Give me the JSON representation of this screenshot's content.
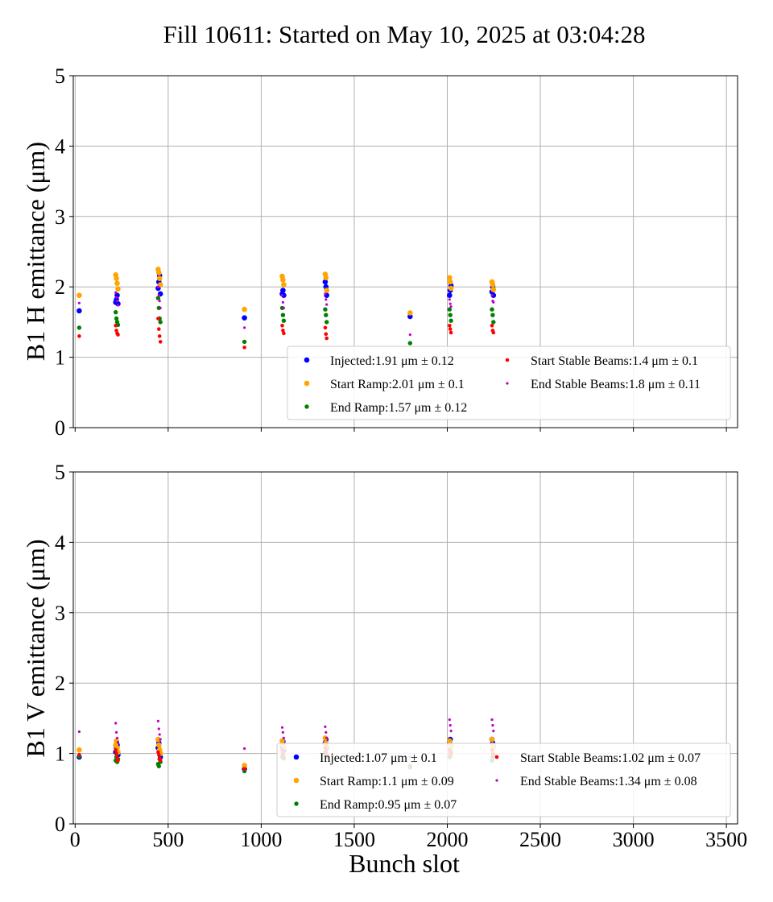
{
  "title": "Fill 10611: Started on May 10, 2025 at 03:04:28",
  "xlabel": "Bunch slot",
  "chart_data": [
    {
      "type": "scatter",
      "ylabel": "B1 H emittance (μm)",
      "xlim": [
        -10,
        3560
      ],
      "ylim": [
        0,
        5
      ],
      "xticks": [
        "0",
        "500",
        "1000",
        "1500",
        "2000",
        "2500",
        "3000",
        "3500"
      ],
      "yticks": [
        "0",
        "1",
        "2",
        "3",
        "4",
        "5"
      ],
      "grid": true,
      "legend_position": "lower-right",
      "series": [
        {
          "name": "Injected",
          "legend": "Injected:1.91 μm ± 0.12",
          "color": "#0000ff",
          "marker_size": "large",
          "points": [
            [
              22,
              1.66
            ],
            [
              218,
              1.78
            ],
            [
              222,
              1.82
            ],
            [
              226,
              1.88
            ],
            [
              230,
              1.76
            ],
            [
              446,
              1.98
            ],
            [
              450,
              2.07
            ],
            [
              454,
              2.16
            ],
            [
              458,
              1.9
            ],
            [
              910,
              1.56
            ],
            [
              1113,
              1.9
            ],
            [
              1117,
              1.95
            ],
            [
              1121,
              1.88
            ],
            [
              1344,
              2.07
            ],
            [
              1348,
              2.0
            ],
            [
              1352,
              1.88
            ],
            [
              1800,
              1.58
            ],
            [
              2012,
              1.88
            ],
            [
              2016,
              1.95
            ],
            [
              2020,
              2.02
            ],
            [
              2240,
              1.93
            ],
            [
              2244,
              2.0
            ],
            [
              2248,
              1.88
            ]
          ]
        },
        {
          "name": "Start Ramp",
          "legend": "Start Ramp:2.01 μm ± 0.1",
          "color": "#ffa500",
          "marker_size": "large",
          "points": [
            [
              22,
              1.88
            ],
            [
              218,
              2.17
            ],
            [
              222,
              2.12
            ],
            [
              226,
              2.05
            ],
            [
              230,
              1.97
            ],
            [
              446,
              2.25
            ],
            [
              450,
              2.2
            ],
            [
              454,
              2.12
            ],
            [
              458,
              2.03
            ],
            [
              910,
              1.68
            ],
            [
              1113,
              2.15
            ],
            [
              1117,
              2.1
            ],
            [
              1121,
              2.03
            ],
            [
              1344,
              2.18
            ],
            [
              1348,
              2.13
            ],
            [
              1352,
              1.95
            ],
            [
              1800,
              1.63
            ],
            [
              2012,
              2.13
            ],
            [
              2016,
              2.07
            ],
            [
              2020,
              1.98
            ],
            [
              2240,
              2.07
            ],
            [
              2244,
              2.03
            ],
            [
              2248,
              1.96
            ]
          ]
        },
        {
          "name": "End Ramp",
          "legend": "End Ramp:1.57 μm ± 0.12",
          "color": "#008000",
          "marker_size": "medium",
          "points": [
            [
              22,
              1.42
            ],
            [
              218,
              1.64
            ],
            [
              222,
              1.55
            ],
            [
              226,
              1.5
            ],
            [
              230,
              1.46
            ],
            [
              446,
              1.84
            ],
            [
              450,
              1.7
            ],
            [
              454,
              1.55
            ],
            [
              458,
              1.5
            ],
            [
              910,
              1.22
            ],
            [
              1113,
              1.7
            ],
            [
              1117,
              1.6
            ],
            [
              1121,
              1.52
            ],
            [
              1344,
              1.68
            ],
            [
              1348,
              1.6
            ],
            [
              1352,
              1.5
            ],
            [
              1800,
              1.2
            ],
            [
              2012,
              1.68
            ],
            [
              2016,
              1.6
            ],
            [
              2020,
              1.52
            ],
            [
              2240,
              1.68
            ],
            [
              2244,
              1.6
            ],
            [
              2248,
              1.5
            ]
          ]
        },
        {
          "name": "Start Stable Beams",
          "legend": "Start Stable Beams:1.4 μm ± 0.1",
          "color": "#ff0000",
          "marker_size": "small",
          "points": [
            [
              22,
              1.3
            ],
            [
              218,
              1.45
            ],
            [
              222,
              1.38
            ],
            [
              226,
              1.34
            ],
            [
              230,
              1.32
            ],
            [
              446,
              1.55
            ],
            [
              450,
              1.4
            ],
            [
              454,
              1.3
            ],
            [
              458,
              1.22
            ],
            [
              910,
              1.14
            ],
            [
              1113,
              1.45
            ],
            [
              1117,
              1.38
            ],
            [
              1121,
              1.34
            ],
            [
              1344,
              1.42
            ],
            [
              1348,
              1.33
            ],
            [
              1352,
              1.27
            ],
            [
              2012,
              1.45
            ],
            [
              2016,
              1.4
            ],
            [
              2020,
              1.35
            ],
            [
              2240,
              1.45
            ],
            [
              2244,
              1.38
            ],
            [
              2248,
              1.35
            ]
          ]
        },
        {
          "name": "End Stable Beams",
          "legend": "End Stable Beams:1.8 μm ± 0.11",
          "color": "#bf00bf",
          "marker_size": "tiny",
          "points": [
            [
              22,
              1.77
            ],
            [
              218,
              1.92
            ],
            [
              222,
              1.85
            ],
            [
              226,
              1.8
            ],
            [
              230,
              1.74
            ],
            [
              446,
              2.0
            ],
            [
              450,
              1.88
            ],
            [
              454,
              1.8
            ],
            [
              458,
              1.7
            ],
            [
              910,
              1.42
            ],
            [
              1113,
              1.88
            ],
            [
              1117,
              1.78
            ],
            [
              1121,
              1.7
            ],
            [
              1344,
              1.9
            ],
            [
              1348,
              1.82
            ],
            [
              1352,
              1.75
            ],
            [
              1800,
              1.32
            ],
            [
              2012,
              1.82
            ],
            [
              2016,
              1.76
            ],
            [
              2020,
              1.72
            ],
            [
              2240,
              1.88
            ],
            [
              2244,
              1.8
            ],
            [
              2248,
              1.78
            ]
          ]
        }
      ]
    },
    {
      "type": "scatter",
      "ylabel": "B1 V emittance (μm)",
      "xlim": [
        -10,
        3560
      ],
      "ylim": [
        0,
        5
      ],
      "xticks": [
        "0",
        "500",
        "1000",
        "1500",
        "2000",
        "2500",
        "3000",
        "3500"
      ],
      "yticks": [
        "0",
        "1",
        "2",
        "3",
        "4",
        "5"
      ],
      "grid": true,
      "legend_position": "lower-right",
      "series": [
        {
          "name": "Injected",
          "legend": "Injected:1.07 μm ± 0.1",
          "color": "#0000ff",
          "marker_size": "large",
          "points": [
            [
              22,
              0.95
            ],
            [
              218,
              1.02
            ],
            [
              222,
              1.08
            ],
            [
              226,
              1.12
            ],
            [
              230,
              0.98
            ],
            [
              446,
              1.08
            ],
            [
              450,
              1.15
            ],
            [
              454,
              1.02
            ],
            [
              458,
              0.95
            ],
            [
              910,
              0.78
            ],
            [
              1113,
              1.1
            ],
            [
              1117,
              1.17
            ],
            [
              1121,
              1.05
            ],
            [
              1344,
              1.15
            ],
            [
              1348,
              1.2
            ],
            [
              1352,
              1.08
            ],
            [
              2012,
              1.15
            ],
            [
              2016,
              1.2
            ],
            [
              2020,
              1.1
            ],
            [
              2240,
              1.2
            ],
            [
              2244,
              1.15
            ],
            [
              2248,
              1.1
            ]
          ]
        },
        {
          "name": "Start Ramp",
          "legend": "Start Ramp:1.1 μm ± 0.09",
          "color": "#ffa500",
          "marker_size": "large",
          "points": [
            [
              22,
              1.05
            ],
            [
              218,
              1.12
            ],
            [
              222,
              1.18
            ],
            [
              226,
              1.08
            ],
            [
              230,
              1.02
            ],
            [
              446,
              1.2
            ],
            [
              450,
              1.12
            ],
            [
              454,
              1.05
            ],
            [
              458,
              1.0
            ],
            [
              910,
              0.83
            ],
            [
              1113,
              1.18
            ],
            [
              1117,
              1.12
            ],
            [
              1121,
              1.08
            ],
            [
              1344,
              1.22
            ],
            [
              1348,
              1.15
            ],
            [
              1352,
              1.1
            ],
            [
              2012,
              1.18
            ],
            [
              2016,
              1.12
            ],
            [
              2020,
              1.08
            ],
            [
              2240,
              1.2
            ],
            [
              2244,
              1.12
            ],
            [
              2248,
              1.08
            ]
          ]
        },
        {
          "name": "End Ramp",
          "legend": "End Ramp:0.95 μm ± 0.07",
          "color": "#008000",
          "marker_size": "medium",
          "points": [
            [
              22,
              0.96
            ],
            [
              218,
              0.9
            ],
            [
              222,
              0.95
            ],
            [
              226,
              0.88
            ],
            [
              230,
              0.92
            ],
            [
              446,
              0.85
            ],
            [
              450,
              0.82
            ],
            [
              454,
              0.92
            ],
            [
              458,
              0.88
            ],
            [
              910,
              0.75
            ],
            [
              1113,
              0.95
            ],
            [
              1117,
              1.0
            ],
            [
              1121,
              0.93
            ],
            [
              1344,
              1.02
            ],
            [
              1348,
              0.98
            ],
            [
              1352,
              0.95
            ],
            [
              1800,
              0.82
            ],
            [
              2012,
              0.95
            ],
            [
              2016,
              1.0
            ],
            [
              2020,
              1.02
            ],
            [
              2240,
              0.9
            ],
            [
              2244,
              0.95
            ],
            [
              2248,
              0.98
            ]
          ]
        },
        {
          "name": "Start Stable Beams",
          "legend": "Start Stable Beams:1.02 μm ± 0.07",
          "color": "#ff0000",
          "marker_size": "small",
          "points": [
            [
              22,
              0.98
            ],
            [
              218,
              1.05
            ],
            [
              222,
              1.0
            ],
            [
              226,
              0.94
            ],
            [
              230,
              0.9
            ],
            [
              446,
              1.02
            ],
            [
              450,
              0.98
            ],
            [
              454,
              0.93
            ],
            [
              458,
              0.9
            ],
            [
              910,
              0.78
            ],
            [
              1113,
              1.05
            ],
            [
              1117,
              1.0
            ],
            [
              1121,
              0.96
            ],
            [
              1344,
              1.08
            ],
            [
              1348,
              1.02
            ],
            [
              1352,
              0.98
            ],
            [
              1800,
              0.8
            ],
            [
              2012,
              1.05
            ],
            [
              2016,
              1.0
            ],
            [
              2020,
              0.97
            ],
            [
              2240,
              1.05
            ],
            [
              2244,
              1.0
            ],
            [
              2248,
              0.97
            ]
          ]
        },
        {
          "name": "End Stable Beams",
          "legend": "End Stable Beams:1.34 μm ± 0.08",
          "color": "#bf00bf",
          "marker_size": "tiny",
          "points": [
            [
              22,
              1.31
            ],
            [
              218,
              1.43
            ],
            [
              222,
              1.3
            ],
            [
              226,
              1.22
            ],
            [
              230,
              1.16
            ],
            [
              446,
              1.46
            ],
            [
              450,
              1.35
            ],
            [
              454,
              1.27
            ],
            [
              458,
              1.2
            ],
            [
              910,
              1.07
            ],
            [
              1113,
              1.37
            ],
            [
              1117,
              1.3
            ],
            [
              1121,
              1.22
            ],
            [
              1344,
              1.38
            ],
            [
              1348,
              1.3
            ],
            [
              1352,
              1.22
            ],
            [
              1800,
              0.96
            ],
            [
              2012,
              1.48
            ],
            [
              2016,
              1.4
            ],
            [
              2020,
              1.32
            ],
            [
              2240,
              1.48
            ],
            [
              2244,
              1.4
            ],
            [
              2248,
              1.32
            ]
          ]
        }
      ]
    }
  ]
}
